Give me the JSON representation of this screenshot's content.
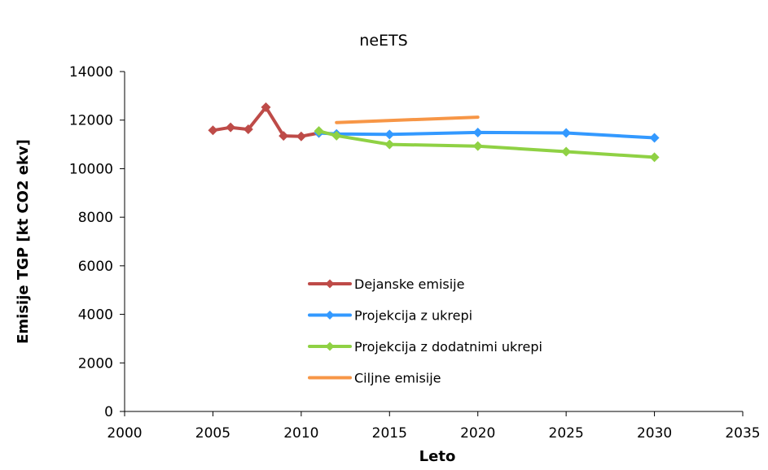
{
  "chart_data": {
    "type": "line",
    "title": "neETS",
    "xlabel": "Leto",
    "ylabel": "Emisije TGP [kt CO2 ekv]",
    "xlim": [
      2000,
      2035
    ],
    "ylim": [
      0,
      14000
    ],
    "x_ticks": [
      2000,
      2005,
      2010,
      2015,
      2020,
      2025,
      2030,
      2035
    ],
    "y_ticks": [
      0,
      2000,
      4000,
      6000,
      8000,
      10000,
      12000,
      14000
    ],
    "grid": false,
    "legend_position": "bottom-center",
    "series": [
      {
        "name": "Dejanske emisije",
        "color": "#be4b48",
        "marker": "diamond",
        "points": [
          [
            2005,
            11580
          ],
          [
            2006,
            11700
          ],
          [
            2007,
            11620
          ],
          [
            2008,
            12530
          ],
          [
            2009,
            11350
          ],
          [
            2010,
            11330
          ],
          [
            2011,
            11470
          ]
        ]
      },
      {
        "name": "Projekcija z ukrepi",
        "color": "#3399ff",
        "marker": "diamond",
        "points": [
          [
            2011,
            11470
          ],
          [
            2012,
            11430
          ],
          [
            2015,
            11410
          ],
          [
            2020,
            11490
          ],
          [
            2025,
            11470
          ],
          [
            2030,
            11270
          ]
        ]
      },
      {
        "name": "Projekcija z dodatnimi ukrepi",
        "color": "#8fd144",
        "marker": "diamond",
        "points": [
          [
            2011,
            11550
          ],
          [
            2012,
            11360
          ],
          [
            2015,
            11000
          ],
          [
            2020,
            10930
          ],
          [
            2025,
            10700
          ],
          [
            2030,
            10470
          ]
        ]
      },
      {
        "name": "Ciljne emisije",
        "color": "#f79646",
        "marker": "none",
        "points": [
          [
            2012,
            11900
          ],
          [
            2020,
            12120
          ]
        ]
      }
    ]
  }
}
